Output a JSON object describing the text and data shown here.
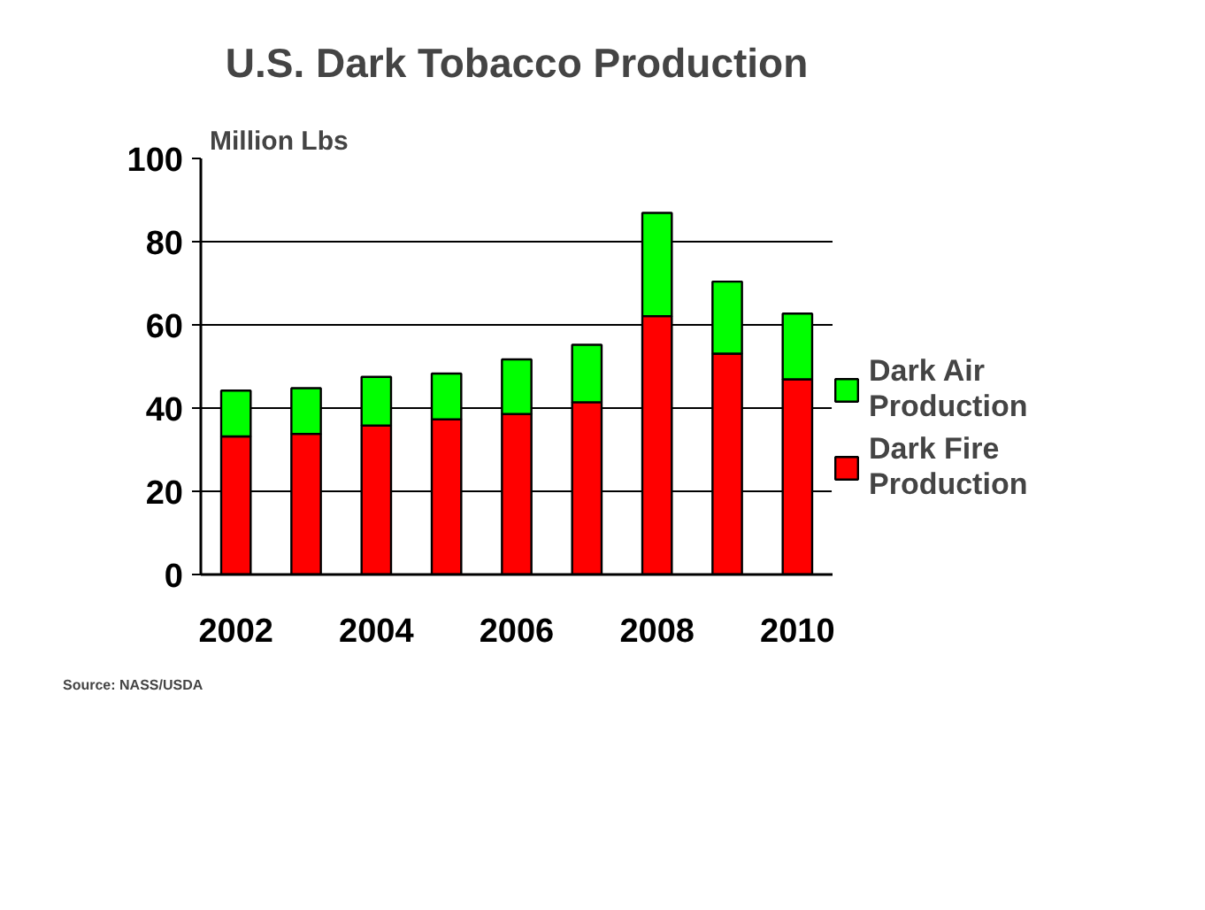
{
  "chart_data": {
    "type": "bar",
    "title": "U.S. Dark Tobacco Production",
    "ylabel": "Million Lbs",
    "categories": [
      "2002",
      null,
      "2004",
      null,
      "2006",
      null,
      "2008",
      null,
      "2010"
    ],
    "series": [
      {
        "name": "Dark Fire Production",
        "color": "#ff0000",
        "values": [
          33.2,
          33.8,
          35.8,
          37.3,
          38.6,
          41.4,
          62.1,
          53.1,
          46.9
        ]
      },
      {
        "name": "Dark Air Production",
        "color": "#00ff00",
        "values": [
          11,
          11,
          11.7,
          11,
          13.1,
          13.8,
          24.8,
          17.3,
          15.8
        ]
      }
    ],
    "stacked": true,
    "ylim": [
      0,
      100
    ],
    "yticks": [
      0,
      20,
      40,
      60,
      80,
      100
    ],
    "grid": "y",
    "legend": "right",
    "annotations": [
      "Source:  NASS/USDA"
    ]
  }
}
